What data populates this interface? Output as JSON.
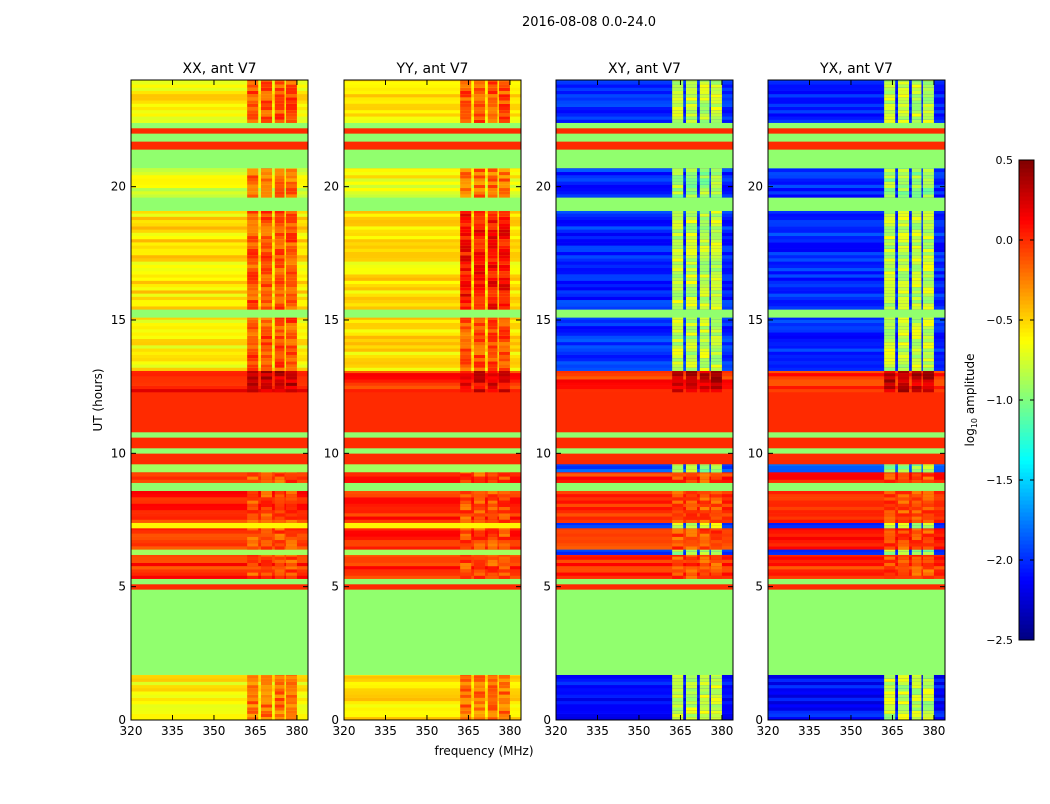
{
  "chart_data": {
    "type": "heatmap",
    "title": "2016-08-08 0.0-24.0",
    "xlabel": "frequency (MHz)",
    "ylabel": "UT (hours)",
    "xlim": [
      320,
      384
    ],
    "ylim": [
      0,
      24
    ],
    "xticks": [
      "320",
      "335",
      "350",
      "365",
      "380"
    ],
    "xtick_values": [
      320,
      335,
      350,
      365,
      380
    ],
    "yticks": [
      "0",
      "5",
      "10",
      "15",
      "20"
    ],
    "ytick_values": [
      0,
      5,
      10,
      15,
      20
    ],
    "feature_columns_mhz": [
      [
        362,
        366
      ],
      [
        367,
        371
      ],
      [
        372,
        375.5
      ],
      [
        376,
        380
      ]
    ],
    "colorbar": {
      "label_main": "log",
      "label_sub": "10",
      "label_tail": " amplitude",
      "range": [
        -2.5,
        0.5
      ],
      "ticks": [
        "0.5",
        "0.0",
        "−0.5",
        "−1.0",
        "−1.5",
        "−2.0",
        "−2.5"
      ],
      "tick_values": [
        0.5,
        0.0,
        -0.5,
        -1.0,
        -1.5,
        -2.0,
        -2.5
      ]
    },
    "panels": [
      {
        "title": "XX, ant V7",
        "kind": "auto",
        "bands": [
          [
            0,
            1.7,
            -0.6,
            -0.2
          ],
          [
            1.7,
            4.9,
            -0.95,
            -0.95
          ],
          [
            4.9,
            5.1,
            0.0,
            0.0
          ],
          [
            5.1,
            5.3,
            -0.95,
            -0.95
          ],
          [
            5.3,
            6.2,
            0.0,
            -0.1
          ],
          [
            6.2,
            6.4,
            -0.9,
            -0.9
          ],
          [
            6.4,
            7.2,
            0.0,
            -0.1
          ],
          [
            7.2,
            7.4,
            -0.6,
            -0.6
          ],
          [
            7.4,
            8.6,
            0.0,
            -0.1
          ],
          [
            8.6,
            8.9,
            -0.95,
            -0.95
          ],
          [
            8.9,
            9.3,
            0.0,
            -0.1
          ],
          [
            9.3,
            9.6,
            -0.9,
            -0.9
          ],
          [
            9.6,
            10.0,
            0.0,
            0.0
          ],
          [
            10.0,
            10.2,
            -0.95,
            -0.95
          ],
          [
            10.2,
            10.6,
            0.0,
            0.0
          ],
          [
            10.6,
            10.8,
            -0.95,
            -0.95
          ],
          [
            10.8,
            12.3,
            0.0,
            0.0
          ],
          [
            12.3,
            13.1,
            0.1,
            0.3
          ],
          [
            13.1,
            15.1,
            -0.6,
            -0.1
          ],
          [
            15.1,
            15.4,
            -0.95,
            -0.95
          ],
          [
            15.4,
            19.1,
            -0.55,
            -0.1
          ],
          [
            19.1,
            19.6,
            -0.95,
            -0.95
          ],
          [
            19.6,
            20.7,
            -0.7,
            -0.2
          ],
          [
            20.7,
            21.4,
            -0.95,
            -0.95
          ],
          [
            21.4,
            21.7,
            0.0,
            0.0
          ],
          [
            21.7,
            22.0,
            -0.95,
            -0.95
          ],
          [
            22.0,
            22.2,
            0.0,
            0.0
          ],
          [
            22.2,
            22.4,
            -0.95,
            -0.95
          ],
          [
            22.4,
            24,
            -0.6,
            -0.1
          ]
        ]
      },
      {
        "title": "YY, ant V7",
        "kind": "auto",
        "bands": [
          [
            0,
            1.7,
            -0.55,
            -0.2
          ],
          [
            1.7,
            4.9,
            -0.95,
            -0.95
          ],
          [
            4.9,
            5.1,
            0.0,
            0.0
          ],
          [
            5.1,
            5.3,
            -0.95,
            -0.95
          ],
          [
            5.3,
            6.2,
            0.0,
            -0.1
          ],
          [
            6.2,
            6.4,
            -0.9,
            -0.9
          ],
          [
            6.4,
            7.2,
            0.0,
            -0.1
          ],
          [
            7.2,
            7.4,
            -0.6,
            -0.6
          ],
          [
            7.4,
            8.6,
            0.0,
            -0.1
          ],
          [
            8.6,
            8.9,
            -0.95,
            -0.95
          ],
          [
            8.9,
            9.3,
            0.0,
            -0.1
          ],
          [
            9.3,
            9.6,
            -0.9,
            -0.9
          ],
          [
            9.6,
            10.0,
            0.0,
            0.0
          ],
          [
            10.0,
            10.2,
            -0.95,
            -0.95
          ],
          [
            10.2,
            10.6,
            0.0,
            0.0
          ],
          [
            10.6,
            10.8,
            -0.95,
            -0.95
          ],
          [
            10.8,
            12.3,
            0.0,
            0.0
          ],
          [
            12.3,
            13.1,
            0.0,
            0.2
          ],
          [
            13.1,
            15.1,
            -0.55,
            -0.1
          ],
          [
            15.1,
            15.4,
            -0.95,
            -0.95
          ],
          [
            15.4,
            19.1,
            -0.55,
            0.1
          ],
          [
            19.1,
            19.6,
            -0.95,
            -0.95
          ],
          [
            19.6,
            20.7,
            -0.65,
            -0.2
          ],
          [
            20.7,
            21.4,
            -0.95,
            -0.95
          ],
          [
            21.4,
            21.7,
            0.0,
            0.0
          ],
          [
            21.7,
            22.0,
            -0.95,
            -0.95
          ],
          [
            22.0,
            22.2,
            0.0,
            0.0
          ],
          [
            22.2,
            22.4,
            -0.95,
            -0.95
          ],
          [
            22.4,
            24,
            -0.55,
            -0.1
          ]
        ]
      },
      {
        "title": "XY, ant V7",
        "kind": "cross",
        "bands": [
          [
            0,
            1.7,
            -2.1,
            -0.8
          ],
          [
            1.7,
            4.9,
            -0.95,
            -0.95
          ],
          [
            4.9,
            5.1,
            0.0,
            0.0
          ],
          [
            5.1,
            5.3,
            -0.95,
            -0.95
          ],
          [
            5.3,
            6.2,
            0.0,
            -0.1
          ],
          [
            6.2,
            6.4,
            -1.9,
            -0.9
          ],
          [
            6.4,
            7.2,
            0.0,
            -0.1
          ],
          [
            7.2,
            7.4,
            -2.0,
            -0.8
          ],
          [
            7.4,
            8.6,
            0.0,
            -0.1
          ],
          [
            8.6,
            8.9,
            -0.95,
            -0.95
          ],
          [
            8.9,
            9.3,
            0.0,
            -0.1
          ],
          [
            9.3,
            9.6,
            -1.9,
            -0.9
          ],
          [
            9.6,
            10.0,
            0.0,
            0.0
          ],
          [
            10.0,
            10.2,
            -0.95,
            -0.95
          ],
          [
            10.2,
            10.6,
            0.0,
            0.0
          ],
          [
            10.6,
            10.8,
            -0.95,
            -0.95
          ],
          [
            10.8,
            12.3,
            0.0,
            0.0
          ],
          [
            12.3,
            13.1,
            0.0,
            0.3
          ],
          [
            13.1,
            15.1,
            -2.0,
            -0.8
          ],
          [
            15.1,
            15.4,
            -0.95,
            -0.95
          ],
          [
            15.4,
            19.1,
            -2.0,
            -0.8
          ],
          [
            19.1,
            19.6,
            -0.95,
            -0.95
          ],
          [
            19.6,
            20.7,
            -2.0,
            -0.9
          ],
          [
            20.7,
            21.4,
            -0.95,
            -0.95
          ],
          [
            21.4,
            21.7,
            0.0,
            0.0
          ],
          [
            21.7,
            22.0,
            -0.95,
            -0.95
          ],
          [
            22.0,
            22.2,
            0.0,
            0.0
          ],
          [
            22.2,
            22.4,
            -0.95,
            -0.95
          ],
          [
            22.4,
            24,
            -2.0,
            -0.8
          ]
        ]
      },
      {
        "title": "YX, ant V7",
        "kind": "cross",
        "bands": [
          [
            0,
            1.7,
            -2.1,
            -0.8
          ],
          [
            1.7,
            4.9,
            -0.95,
            -0.95
          ],
          [
            4.9,
            5.1,
            0.0,
            0.0
          ],
          [
            5.1,
            5.3,
            -0.95,
            -0.95
          ],
          [
            5.3,
            6.2,
            0.0,
            -0.1
          ],
          [
            6.2,
            6.4,
            -1.9,
            -0.9
          ],
          [
            6.4,
            7.2,
            0.0,
            -0.1
          ],
          [
            7.2,
            7.4,
            -2.0,
            -0.8
          ],
          [
            7.4,
            8.6,
            0.0,
            -0.1
          ],
          [
            8.6,
            8.9,
            -0.95,
            -0.95
          ],
          [
            8.9,
            9.3,
            0.0,
            -0.1
          ],
          [
            9.3,
            9.6,
            -1.9,
            -0.9
          ],
          [
            9.6,
            10.0,
            0.0,
            0.0
          ],
          [
            10.0,
            10.2,
            -0.95,
            -0.95
          ],
          [
            10.2,
            10.6,
            0.0,
            0.0
          ],
          [
            10.6,
            10.8,
            -0.95,
            -0.95
          ],
          [
            10.8,
            12.3,
            0.0,
            0.0
          ],
          [
            12.3,
            13.1,
            0.0,
            0.3
          ],
          [
            13.1,
            15.1,
            -2.0,
            -0.8
          ],
          [
            15.1,
            15.4,
            -0.95,
            -0.95
          ],
          [
            15.4,
            19.1,
            -2.0,
            -0.8
          ],
          [
            19.1,
            19.6,
            -0.95,
            -0.95
          ],
          [
            19.6,
            20.7,
            -2.0,
            -0.9
          ],
          [
            20.7,
            21.4,
            -0.95,
            -0.95
          ],
          [
            21.4,
            21.7,
            0.0,
            0.0
          ],
          [
            21.7,
            22.0,
            -0.95,
            -0.95
          ],
          [
            22.0,
            22.2,
            0.0,
            0.0
          ],
          [
            22.2,
            22.4,
            -0.95,
            -0.95
          ],
          [
            22.4,
            24,
            -2.0,
            -0.8
          ]
        ]
      }
    ]
  }
}
